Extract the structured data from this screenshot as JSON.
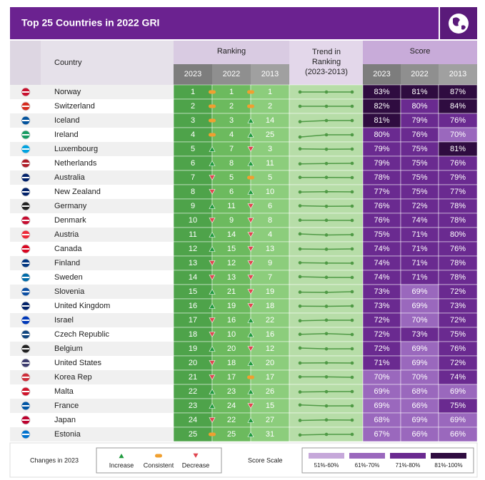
{
  "header": {
    "title": "Top 25 Countries in 2022 GRI"
  },
  "table": {
    "columns": {
      "country": "Country",
      "ranking": "Ranking",
      "trend": [
        "Trend in",
        "Ranking",
        "(2023-2013)"
      ],
      "score": "Score",
      "years": [
        "2023",
        "2022",
        "2013"
      ]
    },
    "rows": [
      {
        "country": "Norway",
        "ranking": [
          1,
          1,
          1
        ],
        "changes": [
          "Consistent",
          "Consistent"
        ],
        "score": [
          "83%",
          "81%",
          "87%"
        ]
      },
      {
        "country": "Switzerland",
        "ranking": [
          2,
          2,
          2
        ],
        "changes": [
          "Consistent",
          "Consistent"
        ],
        "score": [
          "82%",
          "80%",
          "84%"
        ]
      },
      {
        "country": "Iceland",
        "ranking": [
          3,
          3,
          14
        ],
        "changes": [
          "Consistent",
          "Increase"
        ],
        "score": [
          "81%",
          "79%",
          "76%"
        ]
      },
      {
        "country": "Ireland",
        "ranking": [
          4,
          4,
          25
        ],
        "changes": [
          "Consistent",
          "Increase"
        ],
        "score": [
          "80%",
          "76%",
          "70%"
        ]
      },
      {
        "country": "Luxembourg",
        "ranking": [
          5,
          7,
          3
        ],
        "changes": [
          "Increase",
          "Decrease"
        ],
        "score": [
          "79%",
          "75%",
          "81%"
        ]
      },
      {
        "country": "Netherlands",
        "ranking": [
          6,
          8,
          11
        ],
        "changes": [
          "Increase",
          "Increase"
        ],
        "score": [
          "79%",
          "75%",
          "76%"
        ]
      },
      {
        "country": "Australia",
        "ranking": [
          7,
          5,
          5
        ],
        "changes": [
          "Decrease",
          "Consistent"
        ],
        "score": [
          "78%",
          "75%",
          "79%"
        ]
      },
      {
        "country": "New Zealand",
        "ranking": [
          8,
          6,
          10
        ],
        "changes": [
          "Decrease",
          "Increase"
        ],
        "score": [
          "77%",
          "75%",
          "77%"
        ]
      },
      {
        "country": "Germany",
        "ranking": [
          9,
          11,
          6
        ],
        "changes": [
          "Increase",
          "Decrease"
        ],
        "score": [
          "76%",
          "72%",
          "78%"
        ]
      },
      {
        "country": "Denmark",
        "ranking": [
          10,
          9,
          8
        ],
        "changes": [
          "Decrease",
          "Decrease"
        ],
        "score": [
          "76%",
          "74%",
          "78%"
        ]
      },
      {
        "country": "Austria",
        "ranking": [
          11,
          14,
          4
        ],
        "changes": [
          "Increase",
          "Decrease"
        ],
        "score": [
          "75%",
          "71%",
          "80%"
        ]
      },
      {
        "country": "Canada",
        "ranking": [
          12,
          15,
          13
        ],
        "changes": [
          "Increase",
          "Decrease"
        ],
        "score": [
          "74%",
          "71%",
          "76%"
        ]
      },
      {
        "country": "Finland",
        "ranking": [
          13,
          12,
          9
        ],
        "changes": [
          "Decrease",
          "Decrease"
        ],
        "score": [
          "74%",
          "71%",
          "78%"
        ]
      },
      {
        "country": "Sweden",
        "ranking": [
          14,
          13,
          7
        ],
        "changes": [
          "Decrease",
          "Decrease"
        ],
        "score": [
          "74%",
          "71%",
          "78%"
        ]
      },
      {
        "country": "Slovenia",
        "ranking": [
          15,
          21,
          19
        ],
        "changes": [
          "Increase",
          "Decrease"
        ],
        "score": [
          "73%",
          "69%",
          "72%"
        ]
      },
      {
        "country": "United Kingdom",
        "ranking": [
          16,
          19,
          18
        ],
        "changes": [
          "Increase",
          "Decrease"
        ],
        "score": [
          "73%",
          "69%",
          "73%"
        ]
      },
      {
        "country": "Israel",
        "ranking": [
          17,
          16,
          22
        ],
        "changes": [
          "Decrease",
          "Increase"
        ],
        "score": [
          "72%",
          "70%",
          "72%"
        ]
      },
      {
        "country": "Czech Republic",
        "ranking": [
          18,
          10,
          16
        ],
        "changes": [
          "Decrease",
          "Increase"
        ],
        "score": [
          "72%",
          "73%",
          "75%"
        ]
      },
      {
        "country": "Belgium",
        "ranking": [
          19,
          20,
          12
        ],
        "changes": [
          "Increase",
          "Decrease"
        ],
        "score": [
          "72%",
          "69%",
          "76%"
        ]
      },
      {
        "country": "United States",
        "ranking": [
          20,
          18,
          20
        ],
        "changes": [
          "Decrease",
          "Increase"
        ],
        "score": [
          "71%",
          "69%",
          "72%"
        ]
      },
      {
        "country": "Korea Rep",
        "ranking": [
          21,
          17,
          17
        ],
        "changes": [
          "Decrease",
          "Consistent"
        ],
        "score": [
          "70%",
          "70%",
          "74%"
        ]
      },
      {
        "country": "Malta",
        "ranking": [
          22,
          23,
          26
        ],
        "changes": [
          "Increase",
          "Increase"
        ],
        "score": [
          "69%",
          "68%",
          "69%"
        ]
      },
      {
        "country": "France",
        "ranking": [
          23,
          24,
          15
        ],
        "changes": [
          "Increase",
          "Decrease"
        ],
        "score": [
          "69%",
          "66%",
          "75%"
        ]
      },
      {
        "country": "Japan",
        "ranking": [
          24,
          22,
          27
        ],
        "changes": [
          "Decrease",
          "Increase"
        ],
        "score": [
          "68%",
          "69%",
          "69%"
        ]
      },
      {
        "country": "Estonia",
        "ranking": [
          25,
          25,
          31
        ],
        "changes": [
          "Consistent",
          "Increase"
        ],
        "score": [
          "67%",
          "66%",
          "66%"
        ]
      }
    ]
  },
  "legend": {
    "changes_title": "Changes in 2023",
    "changes": [
      "Increase",
      "Consistent",
      "Decrease"
    ],
    "scale_title": "Score Scale",
    "scale": [
      {
        "label": "51%-60%",
        "color": "#c6a8da"
      },
      {
        "label": "61%-70%",
        "color": "#9a68bd"
      },
      {
        "label": "71%-80%",
        "color": "#6a2a90"
      },
      {
        "label": "81%-100%",
        "color": "#2f0c40"
      }
    ]
  }
}
